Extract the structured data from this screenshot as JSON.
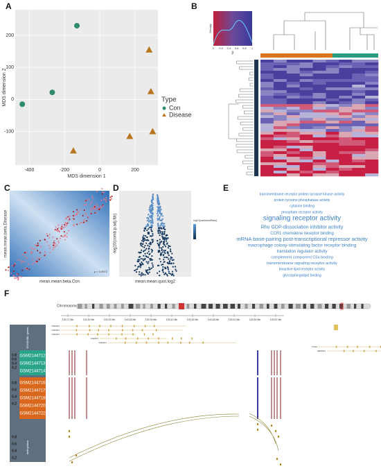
{
  "chart_data": {
    "type": "scatter",
    "xlabel": "MDS dimension 1",
    "ylabel": "MDS dimension 2",
    "legend_title": "Type",
    "legend": "right",
    "grid": true,
    "xlim": [
      -480,
      330
    ],
    "ylim": [
      -205,
      280
    ],
    "xticks": [
      -400,
      -200,
      0,
      200
    ],
    "yticks": [
      -100,
      0,
      100,
      200
    ],
    "series": [
      {
        "name": "Con",
        "color": "#2e8b6e",
        "marker": "circle",
        "x": [
          -130,
          -270,
          -440
        ],
        "values": [
          230,
          22,
          -15
        ]
      },
      {
        "name": "Disease",
        "color": "#b8761f",
        "marker": "triangle",
        "x": [
          280,
          290,
          300,
          170,
          -150
        ],
        "values": [
          155,
          25,
          -100,
          -115,
          -160
        ]
      }
    ]
  },
  "panels": [
    "A",
    "B",
    "C",
    "D",
    "E",
    "F"
  ],
  "heatmap_key": {
    "label": "Density",
    "xlabel": "β",
    "ticks": [
      "0",
      "0.2",
      "0.4",
      "0.6",
      "0.8",
      "1"
    ]
  },
  "panel_c": {
    "xlabel": "mean.mean.beta.Con",
    "ylabel": "mean.mean.beta.Disease",
    "note": "ρ = 0.9972"
  },
  "panel_d": {
    "xlabel": "mean.mean.quot.log2",
    "ylabel": "-log10(comb.p.adj.fdr)",
    "legend": "log10(combinedRank)"
  },
  "wordcloud": [
    {
      "text": "transmembrane receptor protein tyrosine kinase activity",
      "size": 5
    },
    {
      "text": "protein tyrosine phosphatase activity",
      "size": 5
    },
    {
      "text": "cytokine binding",
      "size": 5
    },
    {
      "text": "phosphate receptor activity",
      "size": 5
    },
    {
      "text": "signaling receptor activity",
      "size": 10
    },
    {
      "text": "Rho GDP-dissociation inhibitor activity",
      "size": 7
    },
    {
      "text": "CCR1 chemokine receptor binding",
      "size": 6
    },
    {
      "text": "mRNA base-pairing post-transcriptional repressor activity",
      "size": 7.5
    },
    {
      "text": "macrophage colony-stimulating factor receptor binding",
      "size": 6.5
    },
    {
      "text": "translation regulator activity",
      "size": 6
    },
    {
      "text": "complement component C5a binding",
      "size": 5.5
    },
    {
      "text": "transmembrane signaling receptor activity",
      "size": 5.5
    },
    {
      "text": "bioactive lipid receptor activity",
      "size": 5
    },
    {
      "text": "glycosphingolipid binding",
      "size": 5
    }
  ],
  "panel_f": {
    "chromosome": "Chromosome 5",
    "positions": [
      "130.27 Mb",
      "130.30 Mb",
      "130.33 Mb",
      "130.36 Mb",
      "130.39 Mb",
      "130.42 Mb",
      "130.45 Mb",
      "130.48 Mb",
      "130.51 Mb",
      "130.54 Mb",
      "130.57 Mb"
    ],
    "genes_track": "ENSEMBL genes",
    "methylation_track": "methylation",
    "con_samples": [
      "GSM2144712",
      "GSM2144713",
      "GSM2144714"
    ],
    "disease_samples": [
      "GSM2144716",
      "GSM2144717",
      "GSM2144718",
      "GSM2144720",
      "GSM2144722"
    ],
    "track_ticks": [
      "0.8",
      "0.6",
      "0.4",
      "0.2"
    ],
    "genes": [
      "STEAP1",
      "STEAP1",
      "STEAP1",
      "STEAP1",
      "STEAP1",
      "PTN4",
      "MIR3911"
    ]
  }
}
